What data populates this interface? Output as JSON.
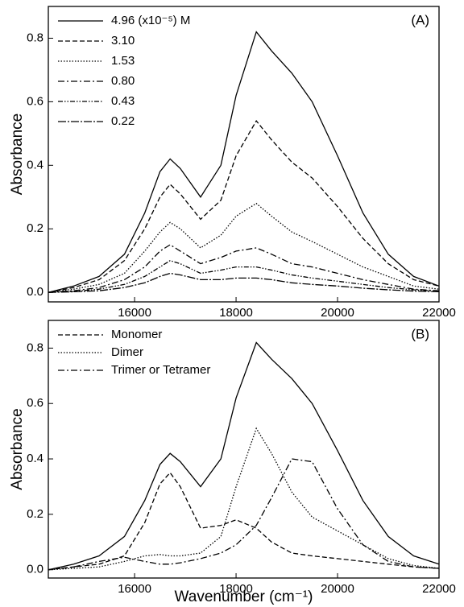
{
  "chart_data": [
    {
      "type": "line",
      "annotation": "(A)",
      "y_label": "Absorbance",
      "x": [
        14300,
        14800,
        15300,
        15800,
        16200,
        16500,
        16700,
        16900,
        17300,
        17700,
        18000,
        18400,
        18700,
        19100,
        19500,
        20000,
        20500,
        21000,
        21500,
        22000
      ],
      "xlim": [
        14300,
        22000
      ],
      "xticks": [
        16000,
        18000,
        20000,
        22000
      ],
      "ylim": [
        -0.03,
        0.9
      ],
      "yticks": [
        {
          "value": 0,
          "label": "0.0"
        },
        0.2,
        0.4,
        0.6,
        0.8
      ],
      "legend": "upper left",
      "series": [
        {
          "name": "4.96 (x10⁻⁵) M",
          "color": "#000",
          "dash": "none",
          "values": [
            0,
            0.02,
            0.05,
            0.12,
            0.25,
            0.38,
            0.42,
            0.39,
            0.3,
            0.4,
            0.62,
            0.82,
            0.76,
            0.69,
            0.6,
            0.43,
            0.25,
            0.12,
            0.05,
            0.02
          ]
        },
        {
          "name": "3.10",
          "color": "#000",
          "dash": "6,3",
          "values": [
            0,
            0.015,
            0.04,
            0.1,
            0.2,
            0.3,
            0.34,
            0.31,
            0.23,
            0.29,
            0.43,
            0.54,
            0.48,
            0.41,
            0.36,
            0.27,
            0.17,
            0.09,
            0.04,
            0.02
          ]
        },
        {
          "name": "1.53",
          "color": "#000",
          "dash": "1.5,2",
          "values": [
            0,
            0.01,
            0.025,
            0.06,
            0.13,
            0.19,
            0.22,
            0.2,
            0.14,
            0.18,
            0.24,
            0.28,
            0.24,
            0.19,
            0.16,
            0.12,
            0.08,
            0.05,
            0.02,
            0.01
          ]
        },
        {
          "name": "0.80",
          "color": "#000",
          "dash": "8,3,2,3",
          "values": [
            0,
            0.005,
            0.015,
            0.04,
            0.08,
            0.13,
            0.15,
            0.13,
            0.09,
            0.11,
            0.13,
            0.14,
            0.12,
            0.09,
            0.08,
            0.06,
            0.04,
            0.025,
            0.01,
            0.005
          ]
        },
        {
          "name": "0.43",
          "color": "#000",
          "dash": "6,2,1.5,2,1.5,2",
          "values": [
            0,
            0.003,
            0.01,
            0.025,
            0.05,
            0.08,
            0.1,
            0.09,
            0.06,
            0.07,
            0.08,
            0.08,
            0.07,
            0.055,
            0.045,
            0.035,
            0.025,
            0.015,
            0.008,
            0.003
          ]
        },
        {
          "name": "0.22",
          "color": "#000",
          "dash": "10,2,2,2",
          "values": [
            0,
            0.002,
            0.005,
            0.015,
            0.03,
            0.05,
            0.06,
            0.055,
            0.04,
            0.04,
            0.045,
            0.045,
            0.04,
            0.03,
            0.025,
            0.02,
            0.013,
            0.008,
            0.004,
            0.002
          ]
        }
      ]
    },
    {
      "type": "line",
      "annotation": "(B)",
      "y_label": "Absorbance",
      "x_label": "Wavenumber (cm⁻¹)",
      "x": [
        14300,
        14800,
        15300,
        15800,
        16200,
        16500,
        16700,
        16900,
        17300,
        17700,
        18000,
        18400,
        18700,
        19100,
        19500,
        20000,
        20500,
        21000,
        21500,
        22000
      ],
      "xlim": [
        14300,
        22000
      ],
      "xticks": [
        16000,
        18000,
        20000,
        22000
      ],
      "ylim": [
        -0.03,
        0.9
      ],
      "yticks": [
        {
          "value": 0,
          "label": "0.0"
        },
        0.2,
        0.4,
        0.6,
        0.8
      ],
      "legend": "upper left",
      "series": [
        {
          "color": "#000",
          "dash": "none",
          "values": [
            0,
            0.02,
            0.05,
            0.12,
            0.25,
            0.38,
            0.42,
            0.39,
            0.3,
            0.4,
            0.62,
            0.82,
            0.76,
            0.69,
            0.6,
            0.43,
            0.25,
            0.12,
            0.05,
            0.02
          ]
        },
        {
          "name": "Monomer",
          "color": "#000",
          "dash": "6,3",
          "values": [
            0,
            0.01,
            0.02,
            0.05,
            0.17,
            0.31,
            0.35,
            0.3,
            0.15,
            0.16,
            0.18,
            0.15,
            0.1,
            0.06,
            0.05,
            0.04,
            0.03,
            0.02,
            0.01,
            0.005
          ]
        },
        {
          "name": "Dimer",
          "color": "#000",
          "dash": "1.5,2",
          "values": [
            0,
            0.005,
            0.01,
            0.03,
            0.05,
            0.055,
            0.05,
            0.05,
            0.06,
            0.12,
            0.3,
            0.51,
            0.42,
            0.28,
            0.19,
            0.14,
            0.09,
            0.04,
            0.015,
            0.005
          ]
        },
        {
          "name": "Trimer or Tetramer",
          "color": "#000",
          "dash": "8,3,2,3",
          "values": [
            0,
            0.01,
            0.03,
            0.045,
            0.03,
            0.02,
            0.02,
            0.025,
            0.04,
            0.06,
            0.09,
            0.16,
            0.26,
            0.4,
            0.39,
            0.22,
            0.09,
            0.03,
            0.01,
            0.005
          ]
        }
      ]
    }
  ]
}
